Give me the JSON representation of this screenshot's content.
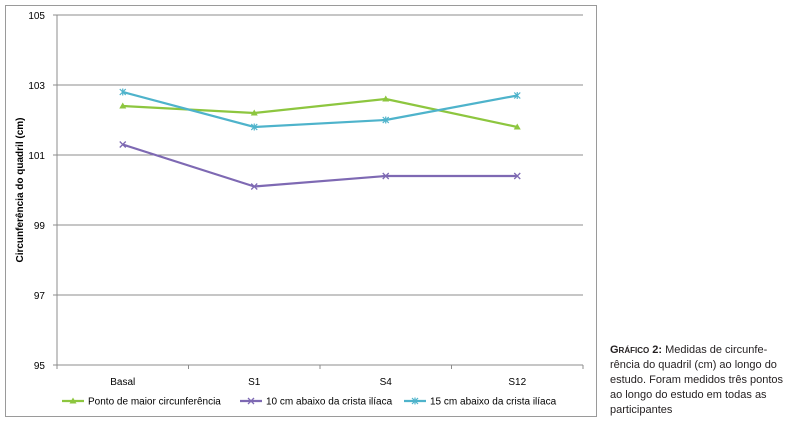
{
  "chart_data": {
    "type": "line",
    "ylabel": "Circunferência do quadril (cm)",
    "xlabel": "",
    "categories": [
      "Basal",
      "S1",
      "S4",
      "S12"
    ],
    "ylim": [
      95,
      105
    ],
    "yticks": [
      95,
      97,
      99,
      101,
      103,
      105
    ],
    "grid": true,
    "legend_position": "bottom",
    "series": [
      {
        "name": "Ponto de maior circunferência",
        "values": [
          102.4,
          102.2,
          102.6,
          101.8
        ],
        "color": "#8dc63f",
        "marker": "triangle"
      },
      {
        "name": "10 cm abaixo da crista ilíaca",
        "values": [
          101.3,
          100.1,
          100.4,
          100.4
        ],
        "color": "#7e69b3",
        "marker": "x"
      },
      {
        "name": "15 cm abaixo da crista ilíaca",
        "values": [
          102.8,
          101.8,
          102.0,
          102.7
        ],
        "color": "#4eb3cb",
        "marker": "star"
      }
    ]
  },
  "caption": {
    "lead": "Gráfico 2:",
    "text": "Medidas de circunfe- rência do quadril (cm) ao longo do estudo. Foram medidos três pontos ao longo do estudo em todas as participantes"
  }
}
